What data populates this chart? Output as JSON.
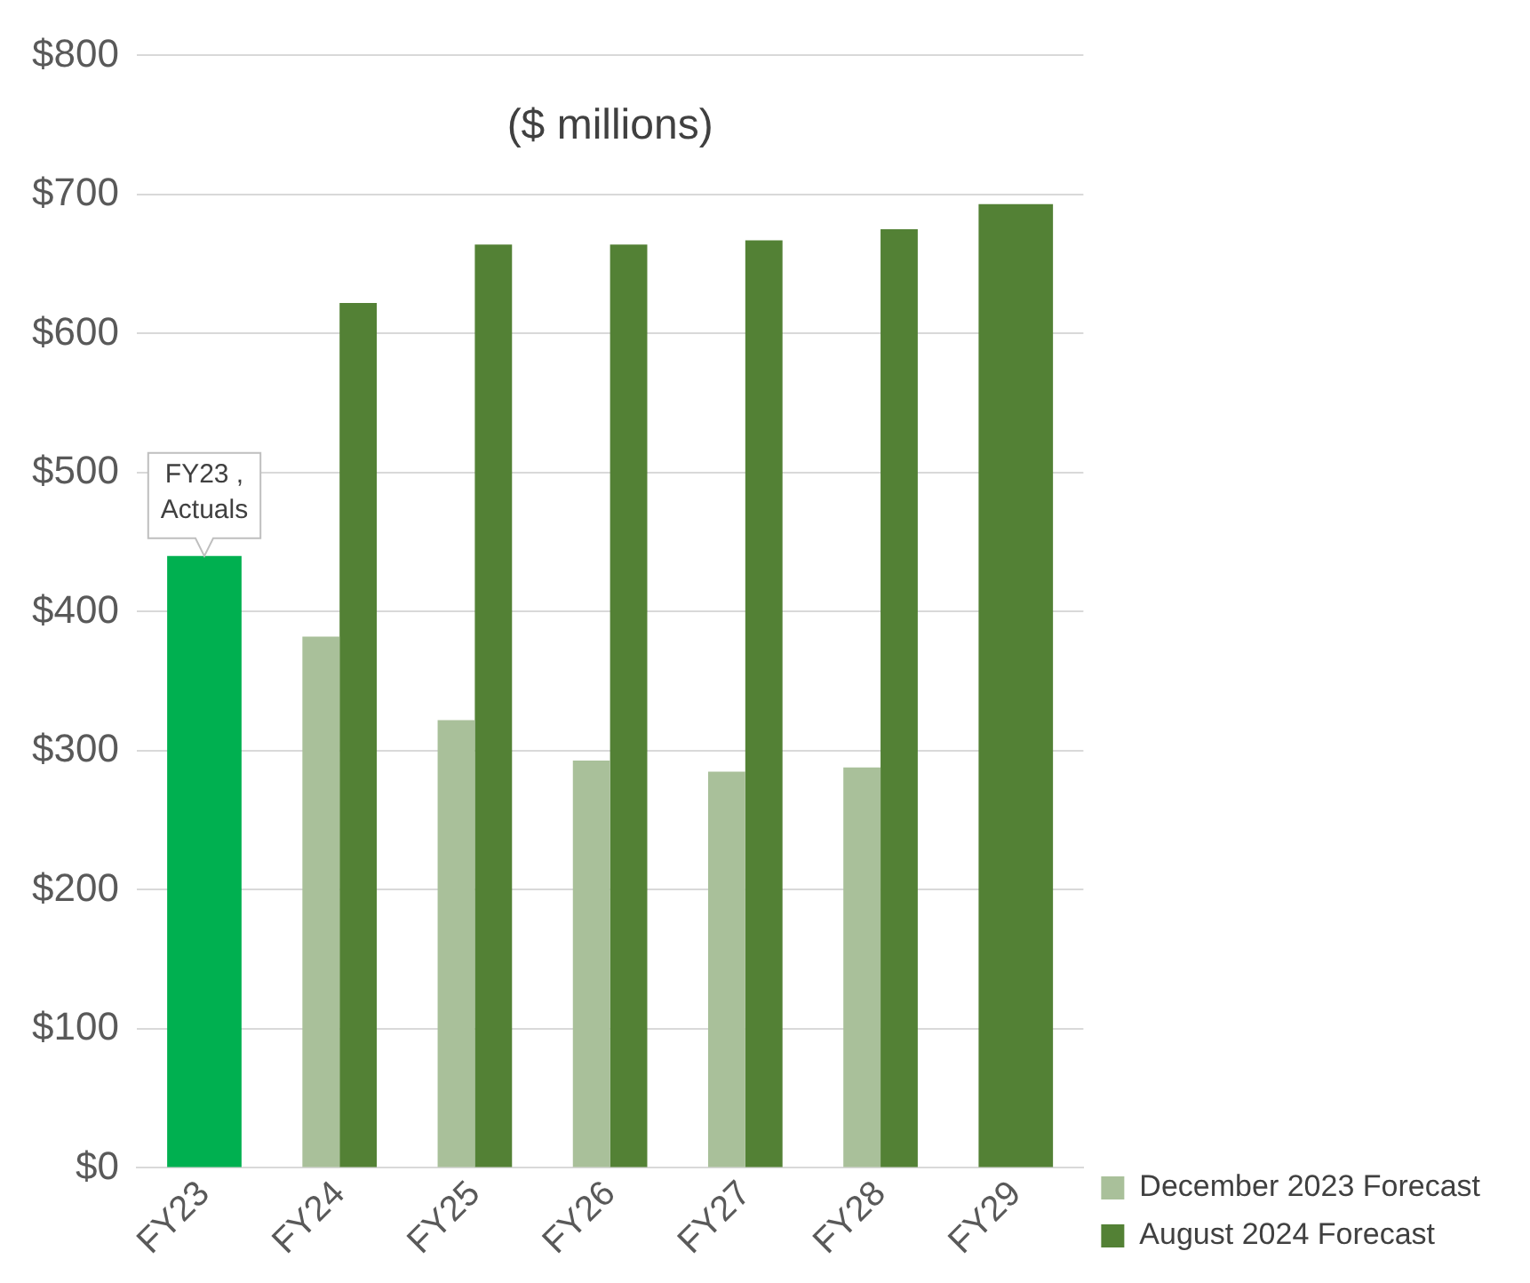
{
  "chart_data": {
    "type": "bar",
    "title": "($ millions)",
    "categories": [
      "FY23",
      "FY24",
      "FY25",
      "FY26",
      "FY27",
      "FY28",
      "FY29"
    ],
    "series": [
      {
        "name": "December 2023 Forecast",
        "color": "#a9c09a",
        "values": [
          null,
          382,
          322,
          293,
          285,
          288,
          null
        ]
      },
      {
        "name": "August 2024 Forecast",
        "color": "#538135",
        "values": [
          null,
          622,
          664,
          664,
          667,
          675,
          693
        ]
      },
      {
        "color": "#00b050",
        "values": [
          440,
          null,
          null,
          null,
          null,
          null,
          null
        ]
      }
    ],
    "ylim": [
      0,
      800
    ],
    "yticks": [
      {
        "value": 0,
        "label": "$0"
      },
      {
        "value": 100,
        "label": "$100"
      },
      {
        "value": 200,
        "label": "$200"
      },
      {
        "value": 300,
        "label": "$300"
      },
      {
        "value": 400,
        "label": "$400"
      },
      {
        "value": 500,
        "label": "$500"
      },
      {
        "value": 600,
        "label": "$600"
      },
      {
        "value": 700,
        "label": "$700"
      },
      {
        "value": 800,
        "label": "$800"
      }
    ],
    "grid": "y",
    "legend": "bottom right",
    "annotations": [
      {
        "text": "FY23 , Actuals",
        "x": "FY23",
        "y": 440
      }
    ]
  }
}
